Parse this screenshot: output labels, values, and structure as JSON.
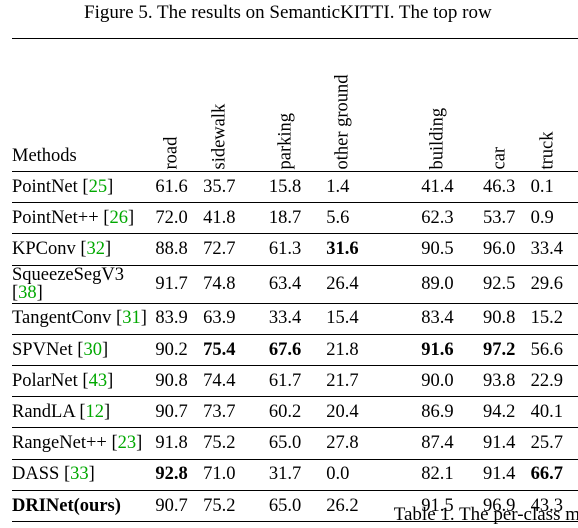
{
  "top_caption": "Figure 5. The results on SemanticKITTI. The top row",
  "bottom_caption": "Table 1. The per-class m",
  "columns": [
    "road",
    "sidewalk",
    "parking",
    "other ground",
    "building",
    "car",
    "truck"
  ],
  "method_header": "Methods",
  "rows": [
    {
      "name": "PointNet",
      "cite": "25",
      "values": [
        "61.6",
        "35.7",
        "15.8",
        "1.4",
        "41.4",
        "46.3",
        "0.1"
      ],
      "bold": [
        false,
        false,
        false,
        false,
        false,
        false,
        false
      ],
      "name_bold": false
    },
    {
      "name": "PointNet++",
      "cite": "26",
      "values": [
        "72.0",
        "41.8",
        "18.7",
        "5.6",
        "62.3",
        "53.7",
        "0.9"
      ],
      "bold": [
        false,
        false,
        false,
        false,
        false,
        false,
        false
      ],
      "name_bold": false
    },
    {
      "name": "KPConv",
      "cite": "32",
      "values": [
        "88.8",
        "72.7",
        "61.3",
        "31.6",
        "90.5",
        "96.0",
        "33.4"
      ],
      "bold": [
        false,
        false,
        false,
        true,
        false,
        false,
        false
      ],
      "name_bold": false
    },
    {
      "name": "SqueezeSegV3",
      "cite": "38",
      "values": [
        "91.7",
        "74.8",
        "63.4",
        "26.4",
        "89.0",
        "92.5",
        "29.6"
      ],
      "bold": [
        false,
        false,
        false,
        false,
        false,
        false,
        false
      ],
      "name_bold": false
    },
    {
      "name": "TangentConv",
      "cite": "31",
      "values": [
        "83.9",
        "63.9",
        "33.4",
        "15.4",
        "83.4",
        "90.8",
        "15.2"
      ],
      "bold": [
        false,
        false,
        false,
        false,
        false,
        false,
        false
      ],
      "name_bold": false
    },
    {
      "name": "SPVNet",
      "cite": "30",
      "values": [
        "90.2",
        "75.4",
        "67.6",
        "21.8",
        "91.6",
        "97.2",
        "56.6"
      ],
      "bold": [
        false,
        true,
        true,
        false,
        true,
        true,
        false
      ],
      "name_bold": false
    },
    {
      "name": "PolarNet",
      "cite": "43",
      "values": [
        "90.8",
        "74.4",
        "61.7",
        "21.7",
        "90.0",
        "93.8",
        "22.9"
      ],
      "bold": [
        false,
        false,
        false,
        false,
        false,
        false,
        false
      ],
      "name_bold": false
    },
    {
      "name": "RandLA",
      "cite": "12",
      "values": [
        "90.7",
        "73.7",
        "60.2",
        "20.4",
        "86.9",
        "94.2",
        "40.1"
      ],
      "bold": [
        false,
        false,
        false,
        false,
        false,
        false,
        false
      ],
      "name_bold": false
    },
    {
      "name": "RangeNet++",
      "cite": "23",
      "values": [
        "91.8",
        "75.2",
        "65.0",
        "27.8",
        "87.4",
        "91.4",
        "25.7"
      ],
      "bold": [
        false,
        false,
        false,
        false,
        false,
        false,
        false
      ],
      "name_bold": false
    },
    {
      "name": "DASS",
      "cite": "33",
      "values": [
        "92.8",
        "71.0",
        "31.7",
        "0.0",
        "82.1",
        "91.4",
        "66.7"
      ],
      "bold": [
        true,
        false,
        false,
        false,
        false,
        false,
        true
      ],
      "name_bold": false
    },
    {
      "name": "DRINet(ours)",
      "cite": "",
      "values": [
        "90.7",
        "75.2",
        "65.0",
        "26.2",
        "91.5",
        "96.9",
        "43.3"
      ],
      "bold": [
        false,
        false,
        false,
        false,
        false,
        false,
        false
      ],
      "name_bold": true
    }
  ],
  "colors": {
    "cite_color": "#00a800",
    "text_color": "#000000",
    "background": "#ffffff",
    "rule_color": "#000000"
  }
}
